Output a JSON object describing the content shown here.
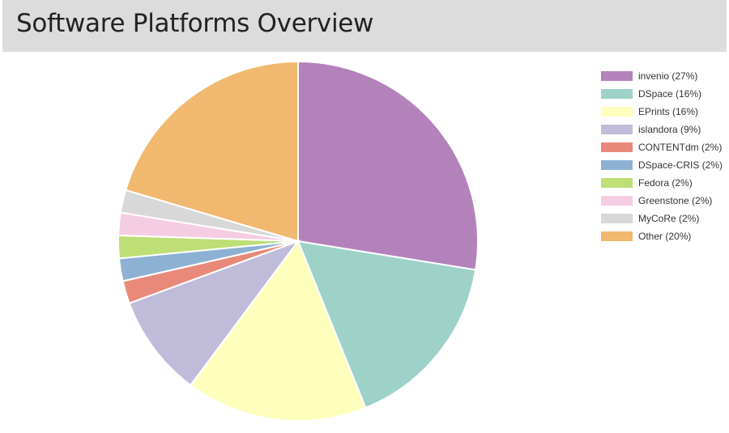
{
  "header": {
    "title": "Software Platforms Overview"
  },
  "chart_data": {
    "type": "pie",
    "title": "Software Platforms Overview",
    "legend_position": "right",
    "slices": [
      {
        "label": "invenio (27%)",
        "name": "invenio",
        "value": 27,
        "color": "#b482bb"
      },
      {
        "label": "DSpace (16%)",
        "name": "DSpace",
        "value": 16,
        "color": "#9ed2c8"
      },
      {
        "label": "EPrints (16%)",
        "name": "EPrints",
        "value": 16,
        "color": "#fefebd"
      },
      {
        "label": "islandora (9%)",
        "name": "islandora",
        "value": 9,
        "color": "#bfbbd9"
      },
      {
        "label": "CONTENTdm (2%)",
        "name": "CONTENTdm",
        "value": 2,
        "color": "#e9897a"
      },
      {
        "label": "DSpace-CRIS (2%)",
        "name": "DSpace-CRIS",
        "value": 2,
        "color": "#8db1d3"
      },
      {
        "label": "Fedora (2%)",
        "name": "Fedora",
        "value": 2,
        "color": "#bede76"
      },
      {
        "label": "Greenstone (2%)",
        "name": "Greenstone",
        "value": 2,
        "color": "#f5cde3"
      },
      {
        "label": "MyCoRe (2%)",
        "name": "MyCoRe",
        "value": 2,
        "color": "#d8d8d8"
      },
      {
        "label": "Other (20%)",
        "name": "Other",
        "value": 20,
        "color": "#f1b86f"
      }
    ]
  }
}
